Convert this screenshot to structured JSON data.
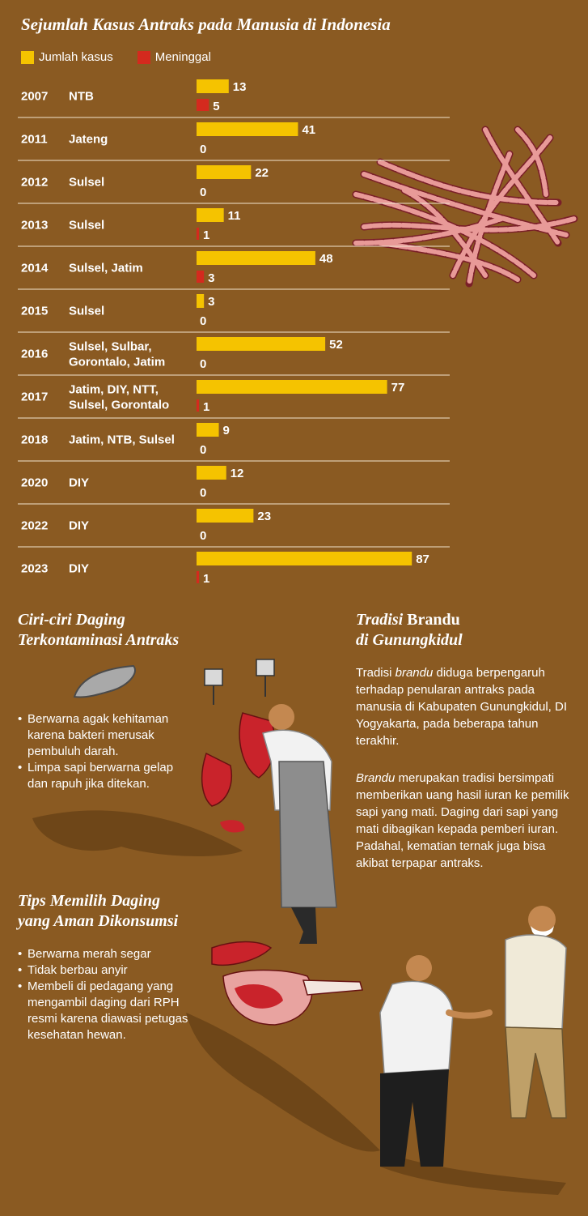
{
  "chart_data": {
    "type": "bar",
    "title": "Sejumlah Kasus Antraks pada Manusia di Indonesia",
    "series": [
      {
        "name": "Jumlah kasus",
        "color": "#f5c300",
        "values": [
          13,
          41,
          22,
          11,
          48,
          3,
          52,
          77,
          9,
          12,
          23,
          87
        ]
      },
      {
        "name": "Meninggal",
        "color": "#d42a1e",
        "values": [
          5,
          0,
          0,
          1,
          3,
          0,
          0,
          1,
          0,
          0,
          0,
          1
        ]
      }
    ],
    "years": [
      "2007",
      "2011",
      "2012",
      "2013",
      "2014",
      "2015",
      "2016",
      "2017",
      "2018",
      "2020",
      "2022",
      "2023"
    ],
    "regions": [
      [
        "NTB"
      ],
      [
        "Jateng"
      ],
      [
        "Sulsel"
      ],
      [
        "Sulsel"
      ],
      [
        "Sulsel, Jatim"
      ],
      [
        "Sulsel"
      ],
      [
        "Sulsel, Sulbar,",
        "Gorontalo, Jatim"
      ],
      [
        "Jatim, DIY, NTT,",
        "Sulsel, Gorontalo"
      ],
      [
        "Jatim, NTB, Sulsel"
      ],
      [
        "DIY"
      ],
      [
        "DIY"
      ],
      [
        "DIY"
      ]
    ]
  },
  "ciri": {
    "title_lines": [
      "Ciri-ciri Daging",
      "Terkontaminasi Antraks"
    ],
    "items": [
      "Berwarna agak kehitaman karena bakteri merusak pembuluh darah.",
      "Limpa sapi berwarna gelap dan rapuh jika ditekan."
    ]
  },
  "tradisi": {
    "title_italic": "Tradisi",
    "title_rest": " Brandu",
    "title_line2": "di Gunungkidul",
    "p1_a": "Tradisi ",
    "p1_em": "brandu",
    "p1_b": " diduga berpengaruh terhadap penularan antraks pada manusia di Kabupaten Gunungkidul, DI Yogyakarta, pada beberapa tahun terakhir.",
    "p2_em": "Brandu",
    "p2_b": " merupakan tradisi bersimpati memberikan uang hasil iuran ke pemilik sapi yang mati. Daging dari sapi yang mati dibagikan kepada pemberi iuran. Padahal, kematian ternak juga bisa akibat terpapar antraks."
  },
  "tips": {
    "title_lines": [
      "Tips Memilih Daging",
      "yang Aman Dikonsumsi"
    ],
    "items": [
      "Berwarna merah segar",
      "Tidak berbau anyir",
      "Membeli di pedagang yang mengambil daging dari RPH resmi karena diawasi petugas kesehatan hewan."
    ]
  }
}
